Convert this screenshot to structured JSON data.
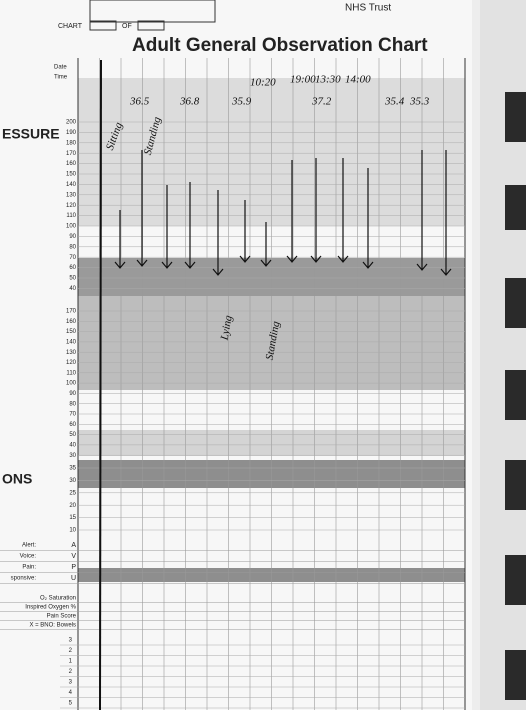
{
  "header": {
    "trust": "NHS Trust",
    "chart": "CHART",
    "of": "OF",
    "title": "Adult General Observation Chart",
    "date": "Date",
    "time": "Time"
  },
  "sections": {
    "pressure": "ESSURE",
    "ons": "ONS"
  },
  "bp_scale": [
    200,
    190,
    180,
    170,
    160,
    150,
    140,
    130,
    120,
    110,
    100,
    90,
    80,
    70,
    60,
    50,
    40
  ],
  "pulse_scale": [
    170,
    160,
    150,
    140,
    130,
    120,
    110,
    100,
    90,
    80,
    70,
    60,
    50,
    40,
    30
  ],
  "resp_scale": [
    35,
    30,
    25,
    20,
    15,
    10
  ],
  "avpu": {
    "labels": [
      "Alert:",
      "Voice:",
      "Pain:",
      "sponsive:"
    ],
    "letters": [
      "A",
      "V",
      "P",
      "U"
    ]
  },
  "lower_labels": [
    "O₂ Saturation",
    "Inspired Oxygen %",
    "Pain Score",
    "X = BNO: Bowels"
  ],
  "score_scale": [
    3,
    2,
    1,
    2,
    3,
    4,
    5
  ],
  "handwriting": {
    "times": [
      "10:20",
      "19:00",
      "13:30",
      "14:00"
    ],
    "temps": [
      "36.5",
      "36.8",
      "35.9",
      "37.2",
      "35.4",
      "35.3"
    ],
    "notes": [
      "Lying",
      "Standing",
      "Sitting",
      "Standing"
    ]
  }
}
